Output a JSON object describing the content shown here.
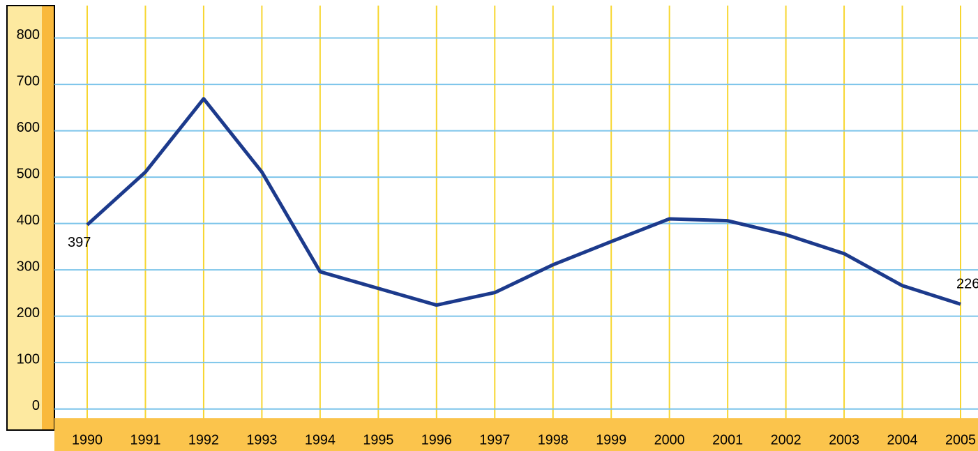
{
  "chart_data": {
    "type": "line",
    "categories": [
      "1990",
      "1991",
      "1992",
      "1993",
      "1994",
      "1995",
      "1996",
      "1997",
      "1998",
      "1999",
      "2000",
      "2001",
      "2002",
      "2003",
      "2004",
      "2005"
    ],
    "values": [
      397,
      511,
      669,
      511,
      296,
      260,
      224,
      251,
      311,
      361,
      410,
      406,
      376,
      335,
      266,
      226
    ],
    "color": "#1c3a8c",
    "ylim": [
      -20,
      870
    ],
    "yticks": [
      0,
      100,
      200,
      300,
      400,
      500,
      600,
      700,
      800
    ],
    "grid": true
  }
}
